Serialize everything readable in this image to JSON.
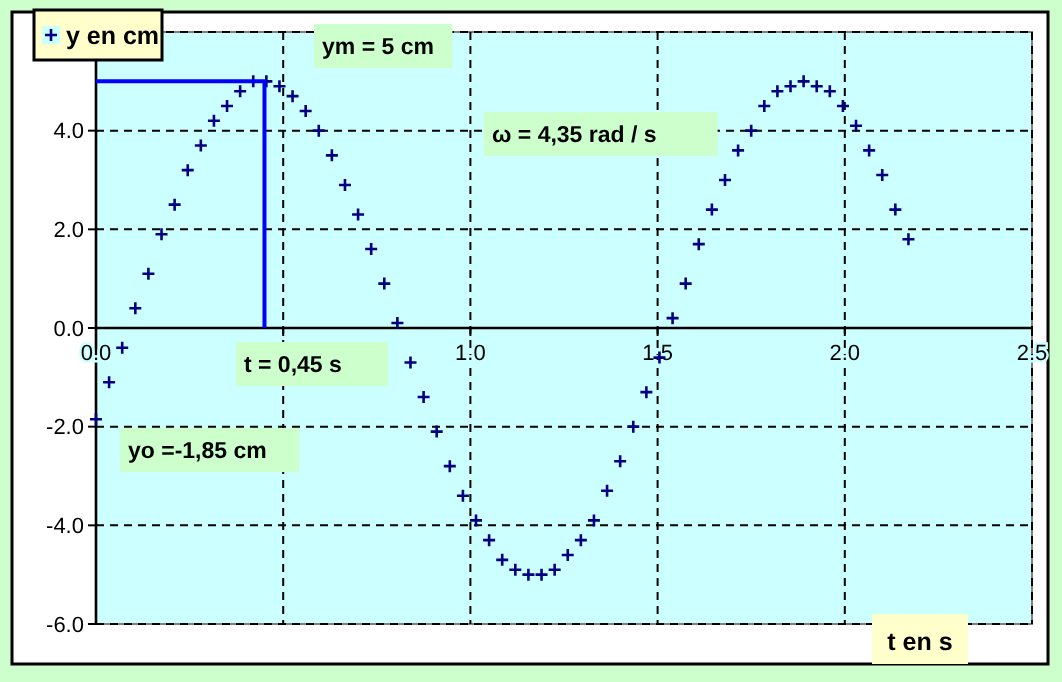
{
  "chart_data": {
    "type": "scatter",
    "xlabel": "t en s",
    "legend": "top left",
    "grid": true,
    "marker": "cross",
    "xlim": [
      0,
      2.5
    ],
    "ylim": [
      -6,
      6
    ],
    "xticks": [
      {
        "value": 0,
        "label": "0.0"
      },
      {
        "value": 0.5,
        "label": null
      },
      {
        "value": 1,
        "label": "1.0"
      },
      {
        "value": 1.5,
        "label": "1.5"
      },
      {
        "value": 2,
        "label": "2.0"
      },
      {
        "value": 2.5,
        "label": "2.5"
      }
    ],
    "yticks": [
      {
        "value": -6,
        "label": "-6.0"
      },
      {
        "value": -4,
        "label": "-4.0"
      },
      {
        "value": -2,
        "label": "-2.0"
      },
      {
        "value": 0,
        "label": "0.0"
      },
      {
        "value": 2,
        "label": "2.0"
      },
      {
        "value": 4,
        "label": "4.0"
      },
      {
        "value": 6,
        "label": null
      }
    ],
    "series": [
      {
        "name": "y en cm",
        "color": "#000080",
        "x": [
          0,
          0.035,
          0.07,
          0.105,
          0.14,
          0.175,
          0.21,
          0.245,
          0.28,
          0.315,
          0.35,
          0.385,
          0.42,
          0.455,
          0.49,
          0.525,
          0.56,
          0.595,
          0.63,
          0.665,
          0.7,
          0.735,
          0.77,
          0.805,
          0.84,
          0.875,
          0.91,
          0.945,
          0.98,
          1.015,
          1.05,
          1.085,
          1.12,
          1.155,
          1.19,
          1.225,
          1.26,
          1.295,
          1.33,
          1.365,
          1.4,
          1.435,
          1.47,
          1.505,
          1.54,
          1.575,
          1.61,
          1.645,
          1.68,
          1.715,
          1.75,
          1.785,
          1.82,
          1.855,
          1.89,
          1.925,
          1.96,
          1.995,
          2.03,
          2.065,
          2.1,
          2.135,
          2.17
        ],
        "values": [
          -1.85,
          -1.1,
          -0.4,
          0.4,
          1.1,
          1.9,
          2.5,
          3.2,
          3.7,
          4.2,
          4.5,
          4.8,
          5.0,
          5.0,
          4.9,
          4.7,
          4.4,
          4.0,
          3.5,
          2.9,
          2.3,
          1.6,
          0.9,
          0.1,
          -0.7,
          -1.4,
          -2.1,
          -2.8,
          -3.4,
          -3.9,
          -4.3,
          -4.7,
          -4.9,
          -5.0,
          -5.0,
          -4.9,
          -4.6,
          -4.3,
          -3.9,
          -3.3,
          -2.7,
          -2.0,
          -1.3,
          -0.6,
          0.2,
          0.9,
          1.7,
          2.4,
          3.0,
          3.6,
          4.0,
          4.5,
          4.8,
          4.9,
          5.0,
          4.9,
          4.8,
          4.5,
          4.1,
          3.6,
          3.1,
          2.4,
          1.8
        ]
      },
      {
        "type": "line",
        "color": "#0000ff",
        "marker": "none",
        "x": [
          0,
          0.45,
          0.45
        ],
        "values": [
          5,
          5,
          0
        ]
      }
    ],
    "annotations": [
      "ym = 5 cm",
      "ω = 4,35 rad / s",
      "t = 0,45 s",
      "yo =-1,85 cm"
    ]
  }
}
